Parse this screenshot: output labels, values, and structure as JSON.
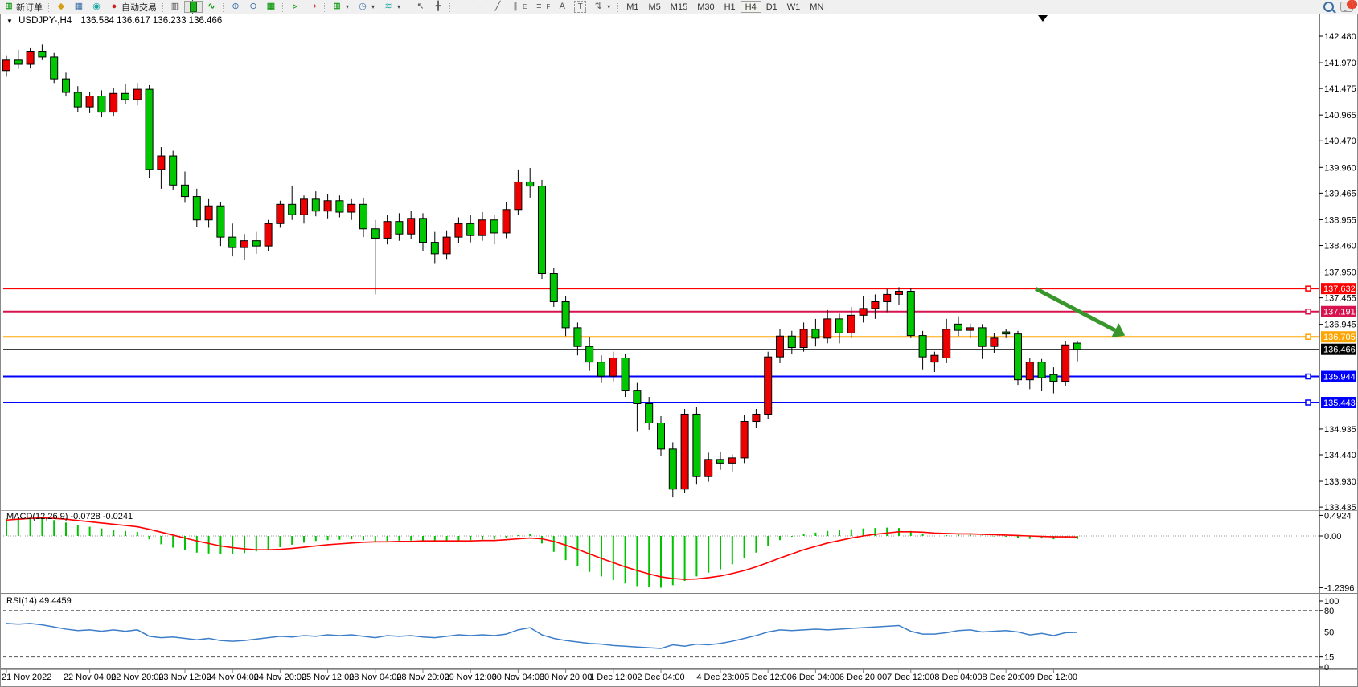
{
  "toolbar": {
    "new_order": "新订单",
    "auto_trading": "自动交易",
    "timeframes": [
      "M1",
      "M5",
      "M15",
      "M30",
      "H1",
      "H4",
      "D1",
      "W1",
      "MN"
    ],
    "active_timeframe": "H4",
    "chat_badge": "1",
    "tool_text_a": "A",
    "tool_text_t": "T",
    "channel_sub": "E",
    "fibo_sub": "F"
  },
  "icons": {
    "collapse-icon": "▼",
    "new-order-icon": "⊞",
    "quotes-icon": "◆",
    "data-window-icon": "▦",
    "signals-icon": "◉",
    "bar-chart-icon": "▥",
    "line-chart-icon": "∿",
    "zoom-in-icon": "⊕",
    "zoom-out-icon": "⊖",
    "tile-windows-icon": "▦",
    "autoscroll-icon": "▹",
    "chart-shift-icon": "↦",
    "new-chart-icon": "⊞",
    "profiles-icon": "◷",
    "indicators-icon": "≋",
    "cursor-icon": "↖",
    "crosshair-icon": "╋",
    "vline-icon": "│",
    "hline-icon": "─",
    "trendline-icon": "╱",
    "channel-icon": "∥",
    "fibo-icon": "≡",
    "arrows-icon": "⇅",
    "caret-icon": "▾"
  },
  "chart": {
    "symbol_period": "USDJPY-,H4",
    "ohlc_text": "136.584 136.617 136.233 136.466"
  },
  "indicators": {
    "macd": {
      "name": "MACD(12,26,9)",
      "values": "-0.0728 -0.0241"
    },
    "rsi": {
      "name": "RSI(14)",
      "value": "49.4459"
    }
  },
  "chart_data": {
    "type": "candlestick",
    "symbol": "USDJPY-",
    "timeframe": "H4",
    "title": "USDJPY-,H4 136.584 136.617 136.233 136.466",
    "current_bar": {
      "open": 136.584,
      "high": 136.617,
      "low": 136.233,
      "close": 136.466
    },
    "bull_color": "#ee0000",
    "bear_color": "#00c800",
    "outline_color": "#000000",
    "price_axis_ticks": [
      142.48,
      141.97,
      141.475,
      140.965,
      140.47,
      139.96,
      139.465,
      138.955,
      138.46,
      137.95,
      137.455,
      136.945,
      134.935,
      134.44,
      133.93,
      133.435
    ],
    "ylim": [
      133.435,
      142.48
    ],
    "hlines": [
      {
        "price": 137.632,
        "label": "137.632",
        "color": "#ff0000"
      },
      {
        "price": 137.191,
        "label": "137.191",
        "color": "#d6134e"
      },
      {
        "price": 136.705,
        "label": "136.705",
        "color": "#ffa500"
      },
      {
        "price": 136.466,
        "label": "136.466",
        "color": "#000000",
        "current": true
      },
      {
        "price": 135.944,
        "label": "135.944",
        "color": "#0000ff"
      },
      {
        "price": 135.443,
        "label": "135.443",
        "color": "#0000ff"
      }
    ],
    "arrow": {
      "from_bar": 86.5,
      "from_price": 137.63,
      "to_bar": 94,
      "to_price": 136.73,
      "color": "#38962c"
    },
    "candles": [
      [
        141.82,
        142.1,
        141.7,
        142.02
      ],
      [
        142.02,
        142.22,
        141.85,
        141.94
      ],
      [
        141.94,
        142.25,
        141.86,
        142.18
      ],
      [
        142.18,
        142.32,
        142.02,
        142.08
      ],
      [
        142.08,
        142.16,
        141.58,
        141.66
      ],
      [
        141.66,
        141.78,
        141.32,
        141.4
      ],
      [
        141.4,
        141.52,
        141.02,
        141.12
      ],
      [
        141.12,
        141.4,
        141.0,
        141.33
      ],
      [
        141.33,
        141.44,
        140.92,
        141.02
      ],
      [
        141.02,
        141.48,
        140.95,
        141.38
      ],
      [
        141.38,
        141.56,
        141.18,
        141.26
      ],
      [
        141.26,
        141.58,
        141.15,
        141.46
      ],
      [
        141.46,
        141.54,
        139.75,
        139.92
      ],
      [
        139.92,
        140.35,
        139.55,
        140.18
      ],
      [
        140.18,
        140.28,
        139.52,
        139.62
      ],
      [
        139.62,
        139.88,
        139.28,
        139.4
      ],
      [
        139.4,
        139.55,
        138.82,
        138.95
      ],
      [
        138.95,
        139.35,
        138.8,
        139.22
      ],
      [
        139.22,
        139.3,
        138.45,
        138.62
      ],
      [
        138.62,
        138.88,
        138.25,
        138.42
      ],
      [
        138.42,
        138.68,
        138.18,
        138.55
      ],
      [
        138.55,
        138.72,
        138.3,
        138.45
      ],
      [
        138.45,
        138.95,
        138.35,
        138.88
      ],
      [
        138.88,
        139.32,
        138.8,
        139.25
      ],
      [
        139.25,
        139.6,
        138.95,
        139.05
      ],
      [
        139.05,
        139.42,
        138.88,
        139.35
      ],
      [
        139.35,
        139.5,
        139.02,
        139.12
      ],
      [
        139.12,
        139.45,
        138.98,
        139.32
      ],
      [
        139.32,
        139.42,
        139.0,
        139.1
      ],
      [
        139.1,
        139.35,
        138.95,
        139.25
      ],
      [
        139.25,
        139.38,
        138.62,
        138.78
      ],
      [
        138.78,
        138.95,
        137.52,
        138.6
      ],
      [
        138.6,
        139.05,
        138.48,
        138.92
      ],
      [
        138.92,
        139.08,
        138.55,
        138.68
      ],
      [
        138.68,
        139.12,
        138.58,
        138.98
      ],
      [
        138.98,
        139.08,
        138.35,
        138.52
      ],
      [
        138.52,
        138.72,
        138.12,
        138.3
      ],
      [
        138.3,
        138.75,
        138.2,
        138.62
      ],
      [
        138.62,
        139.0,
        138.5,
        138.88
      ],
      [
        138.88,
        139.05,
        138.52,
        138.65
      ],
      [
        138.65,
        139.1,
        138.55,
        138.95
      ],
      [
        138.95,
        139.05,
        138.48,
        138.7
      ],
      [
        138.7,
        139.3,
        138.6,
        139.15
      ],
      [
        139.15,
        139.92,
        139.05,
        139.68
      ],
      [
        139.68,
        139.95,
        139.38,
        139.6
      ],
      [
        139.6,
        139.72,
        137.82,
        137.92
      ],
      [
        137.92,
        138.02,
        137.28,
        137.38
      ],
      [
        137.38,
        137.48,
        136.72,
        136.88
      ],
      [
        136.88,
        136.98,
        136.35,
        136.52
      ],
      [
        136.52,
        136.7,
        136.05,
        136.22
      ],
      [
        136.22,
        136.35,
        135.82,
        135.95
      ],
      [
        135.95,
        136.42,
        135.85,
        136.3
      ],
      [
        136.3,
        136.38,
        135.55,
        135.68
      ],
      [
        135.68,
        135.82,
        134.88,
        135.42
      ],
      [
        135.42,
        135.55,
        134.92,
        135.05
      ],
      [
        135.05,
        135.18,
        134.42,
        134.55
      ],
      [
        134.55,
        134.68,
        133.62,
        133.78
      ],
      [
        133.78,
        135.32,
        133.7,
        135.22
      ],
      [
        135.22,
        135.35,
        133.88,
        134.02
      ],
      [
        134.02,
        134.48,
        133.92,
        134.35
      ],
      [
        134.35,
        134.5,
        134.15,
        134.28
      ],
      [
        134.28,
        134.45,
        134.12,
        134.38
      ],
      [
        134.38,
        135.2,
        134.28,
        135.08
      ],
      [
        135.08,
        135.32,
        134.95,
        135.22
      ],
      [
        135.22,
        136.42,
        135.12,
        136.32
      ],
      [
        136.32,
        136.85,
        136.2,
        136.72
      ],
      [
        136.72,
        136.82,
        136.38,
        136.5
      ],
      [
        136.5,
        136.98,
        136.42,
        136.85
      ],
      [
        136.85,
        137.05,
        136.52,
        136.68
      ],
      [
        136.68,
        137.22,
        136.58,
        137.05
      ],
      [
        137.05,
        137.15,
        136.58,
        136.78
      ],
      [
        136.78,
        137.28,
        136.68,
        137.12
      ],
      [
        137.12,
        137.48,
        136.98,
        137.25
      ],
      [
        137.25,
        137.52,
        137.05,
        137.38
      ],
      [
        137.38,
        137.62,
        137.18,
        137.52
      ],
      [
        137.52,
        137.66,
        137.32,
        137.58
      ],
      [
        137.58,
        137.65,
        136.68,
        136.73
      ],
      [
        136.73,
        136.82,
        136.08,
        136.32
      ],
      [
        136.22,
        136.42,
        136.03,
        136.35
      ],
      [
        136.3,
        137.05,
        136.2,
        136.85
      ],
      [
        136.95,
        137.1,
        136.72,
        136.83
      ],
      [
        136.83,
        136.96,
        136.68,
        136.88
      ],
      [
        136.88,
        136.95,
        136.28,
        136.52
      ],
      [
        136.52,
        136.78,
        136.4,
        136.68
      ],
      [
        136.8,
        136.86,
        136.68,
        136.76
      ],
      [
        136.76,
        136.82,
        135.78,
        135.88
      ],
      [
        135.88,
        136.3,
        135.7,
        136.22
      ],
      [
        136.22,
        136.28,
        135.66,
        135.92
      ],
      [
        135.98,
        136.12,
        135.62,
        135.85
      ],
      [
        135.85,
        136.62,
        135.76,
        136.55
      ],
      [
        136.584,
        136.617,
        136.233,
        136.466
      ]
    ],
    "time_labels": [
      {
        "t": "21 Nov 2022",
        "bar": 0
      },
      {
        "t": "22 Nov 04:00",
        "bar": 7
      },
      {
        "t": "22 Nov 20:00",
        "bar": 11
      },
      {
        "t": "23 Nov 12:00",
        "bar": 15
      },
      {
        "t": "24 Nov 04:00",
        "bar": 19
      },
      {
        "t": "24 Nov 20:00",
        "bar": 23
      },
      {
        "t": "25 Nov 12:00",
        "bar": 27
      },
      {
        "t": "28 Nov 04:00",
        "bar": 31
      },
      {
        "t": "28 Nov 20:00",
        "bar": 35
      },
      {
        "t": "29 Nov 12:00",
        "bar": 39
      },
      {
        "t": "30 Nov 04:00",
        "bar": 43
      },
      {
        "t": "30 Nov 20:00",
        "bar": 47
      },
      {
        "t": "1 Dec 12:00",
        "bar": 51
      },
      {
        "t": "2 Dec 04:00",
        "bar": 55
      },
      {
        "t": "4 Dec 23:00",
        "bar": 60
      },
      {
        "t": "5 Dec 12:00",
        "bar": 64
      },
      {
        "t": "6 Dec 04:00",
        "bar": 68
      },
      {
        "t": "6 Dec 20:00",
        "bar": 72
      },
      {
        "t": "7 Dec 12:00",
        "bar": 76
      },
      {
        "t": "8 Dec 04:00",
        "bar": 80
      },
      {
        "t": "8 Dec 20:00",
        "bar": 84
      },
      {
        "t": "9 Dec 12:00",
        "bar": 88
      }
    ],
    "macd": {
      "name": "MACD(12,26,9)",
      "main_value": -0.0728,
      "signal_value": -0.0241,
      "axis_labels": [
        {
          "v": 0.4924,
          "t": "0.4924"
        },
        {
          "v": 0,
          "t": "0.00"
        },
        {
          "v": -1.2396,
          "t": "-1.2396"
        }
      ],
      "histogram_color": "#00c400",
      "signal_color": "#ff0000",
      "histogram": [
        0.42,
        0.44,
        0.45,
        0.43,
        0.38,
        0.32,
        0.26,
        0.22,
        0.18,
        0.15,
        0.12,
        0.1,
        -0.08,
        -0.2,
        -0.28,
        -0.34,
        -0.4,
        -0.42,
        -0.44,
        -0.44,
        -0.41,
        -0.37,
        -0.32,
        -0.27,
        -0.21,
        -0.16,
        -0.12,
        -0.1,
        -0.09,
        -0.08,
        -0.1,
        -0.13,
        -0.12,
        -0.11,
        -0.11,
        -0.12,
        -0.14,
        -0.13,
        -0.11,
        -0.1,
        -0.09,
        -0.08,
        -0.04,
        0.02,
        0.05,
        -0.18,
        -0.38,
        -0.58,
        -0.72,
        -0.86,
        -0.97,
        -1.06,
        -1.14,
        -1.2,
        -1.23,
        -1.24,
        -1.18,
        -1.08,
        -0.97,
        -0.88,
        -0.8,
        -0.68,
        -0.54,
        -0.4,
        -0.24,
        -0.1,
        -0.02,
        0.04,
        0.08,
        0.12,
        0.14,
        0.16,
        0.18,
        0.19,
        0.2,
        0.19,
        0.12,
        0.04,
        0.0,
        0.02,
        0.03,
        0.03,
        0.01,
        -0.01,
        -0.02,
        -0.04,
        -0.07,
        -0.06,
        -0.08,
        -0.06,
        -0.0728
      ],
      "signal": [
        0.38,
        0.4,
        0.42,
        0.43,
        0.42,
        0.4,
        0.37,
        0.34,
        0.31,
        0.28,
        0.25,
        0.22,
        0.16,
        0.09,
        0.02,
        -0.05,
        -0.12,
        -0.18,
        -0.24,
        -0.28,
        -0.31,
        -0.33,
        -0.33,
        -0.32,
        -0.3,
        -0.27,
        -0.24,
        -0.21,
        -0.19,
        -0.17,
        -0.15,
        -0.14,
        -0.14,
        -0.13,
        -0.13,
        -0.12,
        -0.12,
        -0.12,
        -0.12,
        -0.12,
        -0.11,
        -0.11,
        -0.09,
        -0.07,
        -0.05,
        -0.07,
        -0.13,
        -0.22,
        -0.32,
        -0.43,
        -0.54,
        -0.64,
        -0.74,
        -0.83,
        -0.91,
        -0.98,
        -1.02,
        -1.04,
        -1.03,
        -1.0,
        -0.96,
        -0.9,
        -0.83,
        -0.74,
        -0.64,
        -0.53,
        -0.43,
        -0.33,
        -0.25,
        -0.17,
        -0.11,
        -0.05,
        0.0,
        0.04,
        0.07,
        0.1,
        0.1,
        0.09,
        0.07,
        0.06,
        0.05,
        0.05,
        0.04,
        0.03,
        0.02,
        0.01,
        0.0,
        -0.01,
        -0.02,
        -0.02,
        -0.0241
      ]
    },
    "rsi": {
      "name": "RSI(14)",
      "value": 49.4459,
      "line_color": "#3d7ec9",
      "levels": [
        80,
        50,
        15
      ],
      "axis_labels": [
        {
          "v": 100,
          "t": "100"
        },
        {
          "v": 80,
          "t": "80"
        },
        {
          "v": 50,
          "t": "50"
        },
        {
          "v": 15,
          "t": "15"
        },
        {
          "v": 0,
          "t": "0"
        }
      ],
      "series": [
        62,
        61,
        62,
        60,
        57,
        54,
        52,
        53,
        51,
        53,
        51,
        53,
        44,
        42,
        43,
        41,
        39,
        41,
        38,
        37,
        38,
        40,
        42,
        44,
        43,
        45,
        44,
        46,
        45,
        46,
        44,
        42,
        45,
        44,
        45,
        43,
        42,
        44,
        46,
        45,
        46,
        45,
        47,
        53,
        56,
        46,
        41,
        38,
        36,
        34,
        33,
        31,
        30,
        29,
        28,
        27,
        32,
        30,
        33,
        32,
        34,
        37,
        41,
        45,
        50,
        53,
        52,
        53,
        54,
        53,
        54,
        55,
        56,
        57,
        58,
        59,
        51,
        47,
        47,
        49,
        52,
        53,
        50,
        51,
        52,
        50,
        46,
        48,
        45,
        49,
        49.45
      ]
    }
  }
}
